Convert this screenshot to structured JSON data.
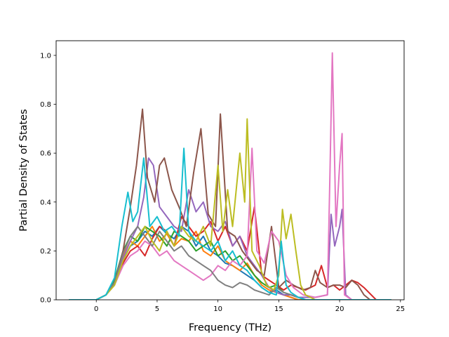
{
  "chart_data": {
    "type": "line",
    "title": "",
    "xlabel": "Frequency (THz)",
    "ylabel": "Partial Density of States",
    "xlim": [
      -3.3,
      25.3
    ],
    "ylim": [
      0,
      1.06
    ],
    "xticks": [
      0,
      5,
      10,
      15,
      20,
      25
    ],
    "yticks": [
      0.0,
      0.2,
      0.4,
      0.6,
      0.8,
      1.0
    ],
    "xtick_labels": [
      "0",
      "5",
      "10",
      "15",
      "20",
      "25"
    ],
    "ytick_labels": [
      "0.0",
      "0.2",
      "0.4",
      "0.6",
      "0.8",
      "1.0"
    ],
    "grid": false,
    "legend": "none",
    "series": [
      {
        "color": "#1f77b4",
        "x": [
          -2.2,
          0,
          0.8,
          1.5,
          2.2,
          2.8,
          3.4,
          4,
          4.6,
          5.2,
          5.8,
          6.4,
          7,
          7.6,
          8.2,
          8.8,
          9.4,
          10,
          10.6,
          11.2,
          11.8,
          12.4,
          13,
          13.6,
          14.2,
          14.8,
          15.4,
          16,
          16.6,
          17.2,
          18,
          19,
          20,
          21,
          22,
          23,
          24.2
        ],
        "y": [
          0,
          0,
          0.02,
          0.06,
          0.16,
          0.22,
          0.24,
          0.28,
          0.26,
          0.3,
          0.27,
          0.25,
          0.3,
          0.28,
          0.22,
          0.26,
          0.2,
          0.18,
          0.15,
          0.14,
          0.12,
          0.1,
          0.08,
          0.05,
          0.03,
          0.04,
          0.02,
          0.01,
          0,
          0,
          0,
          0,
          0,
          0,
          0,
          0,
          0
        ]
      },
      {
        "color": "#ff7f0e",
        "x": [
          -2.2,
          0,
          0.8,
          1.5,
          2.2,
          2.8,
          3.4,
          4,
          4.6,
          5.2,
          5.8,
          6.4,
          7,
          7.6,
          8.2,
          8.8,
          9.4,
          10,
          10.6,
          11.2,
          11.8,
          12.4,
          13,
          13.6,
          14.2,
          14.8,
          15.4,
          16,
          16.6,
          17.2,
          18,
          19,
          20,
          21,
          22,
          23,
          24.2
        ],
        "y": [
          0,
          0,
          0.02,
          0.07,
          0.18,
          0.24,
          0.22,
          0.26,
          0.3,
          0.24,
          0.27,
          0.22,
          0.25,
          0.24,
          0.28,
          0.2,
          0.18,
          0.22,
          0.16,
          0.14,
          0.12,
          0.15,
          0.1,
          0.06,
          0.04,
          0.03,
          0.02,
          0.01,
          0,
          0,
          0,
          0,
          0,
          0,
          0,
          0,
          0
        ]
      },
      {
        "color": "#2ca02c",
        "x": [
          -2.2,
          0,
          0.8,
          1.5,
          2.2,
          2.8,
          3.4,
          4,
          4.6,
          5.2,
          5.8,
          6.4,
          7,
          7.6,
          8.2,
          8.8,
          9.4,
          10,
          10.6,
          11.2,
          11.8,
          12.4,
          13,
          13.6,
          14.2,
          14.8,
          15.4,
          16,
          16.6,
          17.2,
          18,
          19,
          20,
          21,
          22,
          23,
          24.2
        ],
        "y": [
          0,
          0,
          0.02,
          0.08,
          0.2,
          0.26,
          0.24,
          0.3,
          0.28,
          0.26,
          0.22,
          0.28,
          0.26,
          0.24,
          0.2,
          0.22,
          0.24,
          0.18,
          0.2,
          0.16,
          0.18,
          0.14,
          0.1,
          0.07,
          0.05,
          0.06,
          0.03,
          0.02,
          0.01,
          0,
          0,
          0,
          0,
          0,
          0,
          0,
          0
        ]
      },
      {
        "color": "#d62728",
        "x": [
          -2.2,
          0,
          0.8,
          1.5,
          2.2,
          2.8,
          3.4,
          4,
          4.6,
          5.2,
          5.8,
          6.4,
          7,
          7.6,
          8.2,
          8.8,
          9.4,
          10,
          10.6,
          11.2,
          11.8,
          12.4,
          13,
          13.6,
          14.2,
          14.8,
          15.4,
          16,
          16.6,
          17.2,
          18,
          18.5,
          19,
          19.5,
          20,
          20.5,
          21,
          21.5,
          22,
          23,
          24.2
        ],
        "y": [
          0,
          0,
          0.02,
          0.07,
          0.15,
          0.2,
          0.22,
          0.18,
          0.25,
          0.3,
          0.28,
          0.22,
          0.34,
          0.3,
          0.26,
          0.28,
          0.32,
          0.24,
          0.3,
          0.22,
          0.26,
          0.2,
          0.38,
          0.1,
          0.08,
          0.06,
          0.04,
          0.06,
          0.05,
          0.04,
          0.06,
          0.14,
          0.05,
          0.06,
          0.04,
          0.06,
          0.08,
          0.07,
          0.05,
          0,
          0
        ]
      },
      {
        "color": "#9467bd",
        "x": [
          -2.2,
          0,
          0.8,
          1.5,
          2.2,
          2.8,
          3.4,
          3.9,
          4.3,
          4.7,
          5.2,
          5.8,
          6.4,
          7,
          7.6,
          8.2,
          8.8,
          9.4,
          10,
          10.6,
          11.2,
          11.8,
          12.4,
          13,
          13.6,
          14.2,
          14.8,
          15.4,
          16,
          16.6,
          17.2,
          18,
          19,
          19.3,
          19.6,
          20,
          20.2,
          20.5,
          21,
          22,
          23,
          24.2
        ],
        "y": [
          0,
          0,
          0.02,
          0.07,
          0.17,
          0.24,
          0.3,
          0.42,
          0.58,
          0.55,
          0.38,
          0.34,
          0.3,
          0.28,
          0.45,
          0.36,
          0.4,
          0.3,
          0.28,
          0.32,
          0.22,
          0.26,
          0.18,
          0.14,
          0.1,
          0.05,
          0.03,
          0.02,
          0.02,
          0.01,
          0.01,
          0.01,
          0.02,
          0.35,
          0.22,
          0.3,
          0.37,
          0.02,
          0,
          0,
          0,
          0
        ]
      },
      {
        "color": "#8c564b",
        "x": [
          -2.2,
          0,
          0.8,
          1.5,
          2.2,
          2.8,
          3.3,
          3.8,
          4.2,
          4.8,
          5.2,
          5.6,
          6.2,
          6.8,
          7.4,
          8,
          8.6,
          9.2,
          9.8,
          10.2,
          10.8,
          11.4,
          12,
          12.6,
          13.2,
          13.8,
          14.4,
          15,
          15.6,
          16.2,
          17,
          17.6,
          18,
          18.4,
          19,
          19.5,
          20,
          20.5,
          21,
          21.5,
          22,
          22.5,
          23,
          24.2
        ],
        "y": [
          0,
          0,
          0.02,
          0.07,
          0.2,
          0.38,
          0.55,
          0.78,
          0.5,
          0.4,
          0.55,
          0.58,
          0.45,
          0.38,
          0.3,
          0.52,
          0.7,
          0.35,
          0.3,
          0.76,
          0.28,
          0.26,
          0.2,
          0.16,
          0.12,
          0.1,
          0.3,
          0.05,
          0.08,
          0.06,
          0.04,
          0.05,
          0.12,
          0.07,
          0.05,
          0.06,
          0.06,
          0.05,
          0.08,
          0.06,
          0.02,
          0,
          0,
          0
        ]
      },
      {
        "color": "#e377c2",
        "x": [
          -2.2,
          0,
          0.8,
          1.5,
          2.2,
          2.8,
          3.4,
          4,
          4.6,
          5.2,
          5.8,
          6.4,
          7,
          7.6,
          8.2,
          8.8,
          9.4,
          10,
          10.6,
          11.2,
          11.8,
          12.4,
          12.8,
          13.2,
          13.8,
          14.4,
          15,
          15.6,
          16.2,
          17,
          18,
          19,
          19.2,
          19.4,
          19.7,
          20,
          20.2,
          20.4,
          21,
          22,
          23,
          24.2
        ],
        "y": [
          0,
          0,
          0.02,
          0.06,
          0.14,
          0.18,
          0.2,
          0.24,
          0.22,
          0.18,
          0.2,
          0.16,
          0.14,
          0.12,
          0.1,
          0.08,
          0.1,
          0.14,
          0.12,
          0.16,
          0.14,
          0.18,
          0.62,
          0.2,
          0.15,
          0.28,
          0.24,
          0.1,
          0.05,
          0.02,
          0.01,
          0.02,
          0.5,
          1.01,
          0.3,
          0.55,
          0.68,
          0.02,
          0,
          0,
          0,
          0
        ]
      },
      {
        "color": "#7f7f7f",
        "x": [
          -2.2,
          0,
          0.8,
          1.5,
          2.2,
          2.8,
          3.4,
          4,
          4.6,
          5.2,
          5.8,
          6.4,
          7,
          7.6,
          8.2,
          8.8,
          9.4,
          10,
          10.6,
          11.2,
          11.8,
          12.4,
          13,
          13.6,
          14.2,
          14.8,
          15.4,
          16,
          16.6,
          17.2,
          18,
          19,
          20,
          21,
          22,
          23,
          24.2
        ],
        "y": [
          0,
          0,
          0.02,
          0.07,
          0.19,
          0.26,
          0.3,
          0.26,
          0.22,
          0.28,
          0.24,
          0.2,
          0.22,
          0.18,
          0.16,
          0.14,
          0.12,
          0.08,
          0.06,
          0.05,
          0.07,
          0.06,
          0.04,
          0.03,
          0.02,
          0.05,
          0.03,
          0.02,
          0.01,
          0,
          0,
          0,
          0,
          0,
          0,
          0,
          0
        ]
      },
      {
        "color": "#bcbd22",
        "x": [
          -2.2,
          0,
          0.8,
          1.5,
          2.2,
          2.8,
          3.4,
          4,
          4.6,
          5.2,
          5.8,
          6.4,
          7,
          7.6,
          8.2,
          8.8,
          9.4,
          10,
          10.4,
          10.8,
          11.2,
          11.8,
          12.2,
          12.4,
          12.8,
          13.4,
          14,
          14.6,
          15,
          15.3,
          15.6,
          16,
          16.4,
          16.8,
          17.2,
          18,
          19,
          20,
          21,
          22,
          23,
          24.2
        ],
        "y": [
          0,
          0,
          0.02,
          0.06,
          0.16,
          0.22,
          0.26,
          0.3,
          0.24,
          0.2,
          0.28,
          0.22,
          0.3,
          0.26,
          0.24,
          0.3,
          0.22,
          0.55,
          0.28,
          0.45,
          0.3,
          0.6,
          0.4,
          0.74,
          0.2,
          0.14,
          0.06,
          0.04,
          0.1,
          0.37,
          0.25,
          0.35,
          0.2,
          0.06,
          0.02,
          0,
          0,
          0,
          0,
          0,
          0,
          0
        ]
      },
      {
        "color": "#17becf",
        "x": [
          -2.2,
          0,
          0.8,
          1.5,
          2.1,
          2.6,
          3,
          3.4,
          3.9,
          4.4,
          5,
          5.6,
          6.2,
          6.8,
          7.2,
          7.6,
          8.2,
          8.8,
          9.4,
          10,
          10.6,
          11.2,
          11.8,
          12.4,
          13,
          13.6,
          14.2,
          14.8,
          15.2,
          15.6,
          16,
          16.6,
          17.2,
          18,
          19,
          20,
          21,
          22,
          23,
          24.2
        ],
        "y": [
          0,
          0,
          0.02,
          0.09,
          0.3,
          0.44,
          0.32,
          0.36,
          0.58,
          0.3,
          0.34,
          0.28,
          0.3,
          0.26,
          0.62,
          0.28,
          0.24,
          0.22,
          0.2,
          0.24,
          0.16,
          0.2,
          0.14,
          0.12,
          0.08,
          0.05,
          0.03,
          0.02,
          0.24,
          0.06,
          0.03,
          0.01,
          0,
          0,
          0,
          0,
          0,
          0,
          0,
          0
        ]
      }
    ]
  }
}
